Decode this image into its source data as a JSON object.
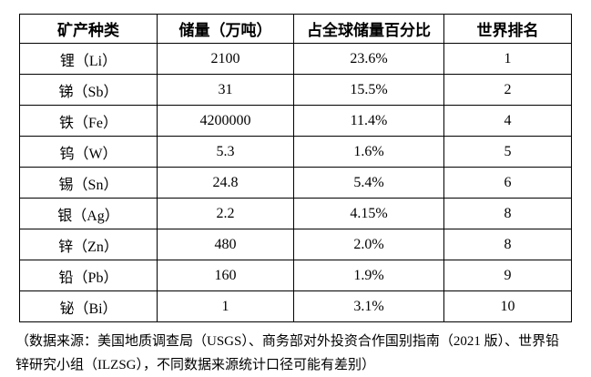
{
  "table": {
    "headers": [
      "矿产种类",
      "储量（万吨）",
      "占全球储量百分比",
      "世界排名"
    ],
    "rows": [
      [
        "锂（Li）",
        "2100",
        "23.6%",
        "1"
      ],
      [
        "锑（Sb）",
        "31",
        "15.5%",
        "2"
      ],
      [
        "铁（Fe）",
        "4200000",
        "11.4%",
        "4"
      ],
      [
        "钨（W）",
        "5.3",
        "1.6%",
        "5"
      ],
      [
        "锡（Sn）",
        "24.8",
        "5.4%",
        "6"
      ],
      [
        "银（Ag）",
        "2.2",
        "4.15%",
        "8"
      ],
      [
        "锌（Zn）",
        "480",
        "2.0%",
        "8"
      ],
      [
        "铅（Pb）",
        "160",
        "1.9%",
        "9"
      ],
      [
        "铋（Bi）",
        "1",
        "3.1%",
        "10"
      ]
    ]
  },
  "footer": {
    "line1": "（数据来源：美国地质调查局（USGS）、商务部对外投资合作国别指南（2021 版）、世界铅",
    "line2": "锌研究小组（ILZSG），不同数据来源统计口径可能有差别）"
  },
  "colors": {
    "background": "#ffffff",
    "border": "#000000",
    "text": "#000000"
  }
}
